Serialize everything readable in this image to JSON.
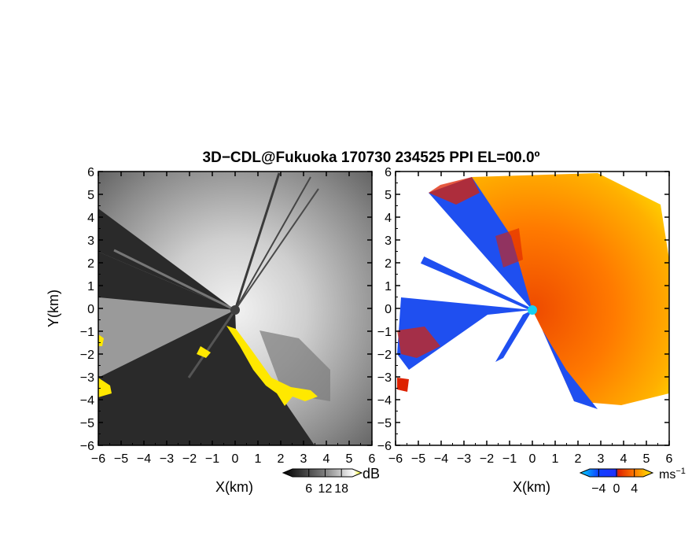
{
  "figure": {
    "title": "3D−CDL@Fukuoka 170730 234525 PPI EL=00.0º"
  },
  "chart_data": [
    {
      "type": "heatmap",
      "panel": "snr",
      "xlabel": "X(km)",
      "ylabel": "Y(km)",
      "xlim": [
        -6,
        6
      ],
      "ylim": [
        -6,
        6
      ],
      "xticks": [
        -6,
        -5,
        -4,
        -3,
        -2,
        -1,
        0,
        1,
        2,
        3,
        4,
        5,
        6
      ],
      "yticks": [
        -6,
        -5,
        -4,
        -3,
        -2,
        -1,
        0,
        1,
        2,
        3,
        4,
        5,
        6
      ],
      "colorbar": {
        "unit": "dB",
        "ticks": [
          6,
          12,
          18
        ],
        "range": [
          0,
          22
        ],
        "colors": [
          "#000000",
          "#555555",
          "#aaaaaa",
          "#ffffff",
          "#ffff00"
        ]
      },
      "radar_center": [
        0,
        0
      ],
      "center_marker_color": "#404040",
      "background_color": "#2b2b2b",
      "bright_sector_color": "#c8c8c8",
      "highlight_color": "#ffee00"
    },
    {
      "type": "heatmap",
      "panel": "doppler_velocity",
      "xlabel": "X(km)",
      "ylabel": "",
      "xlim": [
        -6,
        6
      ],
      "ylim": [
        -6,
        6
      ],
      "xticks": [
        -6,
        -5,
        -4,
        -3,
        -2,
        -1,
        0,
        1,
        2,
        3,
        4,
        5,
        6
      ],
      "yticks": [
        -6,
        -5,
        -4,
        -3,
        -2,
        -1,
        0,
        1,
        2,
        3,
        4,
        5,
        6
      ],
      "colorbar": {
        "unit": "ms",
        "unit_exponent": "−1",
        "ticks": [
          -4,
          0,
          4
        ],
        "range": [
          -6,
          6
        ],
        "colors": [
          "#00cfff",
          "#1040ff",
          "#1a3cff",
          "#dd2a00",
          "#ff6600",
          "#ffaa00",
          "#ffe600"
        ]
      },
      "radar_center": [
        0,
        0
      ],
      "center_marker_color": "#18d0f0",
      "negative_color": "#1f4ff0",
      "positive_color": "#ff6a00",
      "far_positive_color": "#ffcc00"
    }
  ]
}
